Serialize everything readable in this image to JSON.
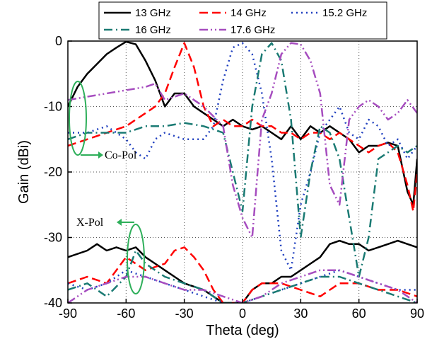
{
  "chart_data": {
    "type": "line",
    "title": "",
    "xlabel": "Theta (deg)",
    "ylabel": "Gain (dBi)",
    "xlim": [
      -90,
      90
    ],
    "ylim": [
      -40,
      0
    ],
    "xticks": [
      -90,
      -60,
      -30,
      0,
      30,
      60,
      90
    ],
    "yticks": [
      0,
      -10,
      -20,
      -30,
      -40
    ],
    "grid": true,
    "legend_position": "top",
    "annotations": [
      {
        "text": "Co-Pol"
      },
      {
        "text": "X-Pol"
      }
    ],
    "series": [
      {
        "name": "13 GHz",
        "color": "#000000",
        "style": "solid",
        "co_pol": {
          "x": [
            -90,
            -85,
            -80,
            -75,
            -70,
            -65,
            -60,
            -55,
            -50,
            -45,
            -40,
            -35,
            -30,
            -25,
            -20,
            -15,
            -10,
            -5,
            0,
            5,
            10,
            15,
            20,
            25,
            30,
            35,
            40,
            45,
            50,
            55,
            60,
            65,
            70,
            75,
            80,
            85,
            88,
            90
          ],
          "y": [
            -10,
            -7,
            -5,
            -3.5,
            -2,
            -1,
            -0.1,
            -0.5,
            -3,
            -6,
            -10,
            -8,
            -8,
            -10,
            -11,
            -12,
            -13,
            -12,
            -13,
            -13.5,
            -13,
            -14,
            -15,
            -13,
            -15,
            -13,
            -14,
            -13,
            -14,
            -15,
            -17,
            -16,
            -16,
            -15.5,
            -16,
            -23,
            -25,
            -18
          ]
        },
        "x_pol": {
          "x": [
            -90,
            -80,
            -75,
            -70,
            -65,
            -60,
            -55,
            -50,
            -45,
            -40,
            -35,
            -30,
            -25,
            -20,
            -15,
            -10,
            -5,
            0,
            5,
            10,
            15,
            20,
            25,
            30,
            35,
            40,
            45,
            50,
            55,
            60,
            65,
            70,
            75,
            80,
            85,
            90
          ],
          "y": [
            -33,
            -32,
            -31,
            -32,
            -31.5,
            -32,
            -31.5,
            -33,
            -34,
            -35,
            -36,
            -37,
            -37.5,
            -38,
            -39,
            -40,
            -40,
            -40,
            -38,
            -37,
            -37,
            -36,
            -36,
            -35,
            -34,
            -33,
            -31,
            -30.5,
            -31,
            -31,
            -32,
            -31.5,
            -31,
            -30.5,
            -31,
            -31.5
          ]
        }
      },
      {
        "name": "14 GHz",
        "color": "#ff0000",
        "style": "dash",
        "co_pol": {
          "x": [
            -90,
            -80,
            -70,
            -60,
            -50,
            -45,
            -40,
            -35,
            -30,
            -25,
            -20,
            -15,
            -10,
            -5,
            0,
            5,
            10,
            15,
            20,
            25,
            30,
            35,
            40,
            45,
            50,
            55,
            60,
            65,
            70,
            75,
            80,
            85,
            88,
            90
          ],
          "y": [
            -16,
            -15,
            -14,
            -13,
            -11,
            -10,
            -8,
            -4,
            -0.3,
            -4,
            -10,
            -13,
            -12,
            -13,
            -13,
            -12,
            -13,
            -13,
            -14,
            -14,
            -15,
            -14,
            -14,
            -15,
            -14,
            -15,
            -16,
            -17,
            -16,
            -15.5,
            -17,
            -22,
            -26,
            -20
          ]
        },
        "x_pol": {
          "x": [
            -90,
            -80,
            -70,
            -60,
            -50,
            -40,
            -35,
            -30,
            -25,
            -20,
            -15,
            -10,
            -5,
            0,
            5,
            10,
            20,
            30,
            40,
            50,
            60,
            70,
            80,
            90
          ],
          "y": [
            -37,
            -36,
            -37,
            -33,
            -35,
            -34,
            -32,
            -31.5,
            -33,
            -35,
            -38,
            -40,
            -40,
            -40,
            -38,
            -37,
            -37,
            -38,
            -39,
            -37,
            -37,
            -38,
            -38,
            -39
          ]
        }
      },
      {
        "name": "15.2 GHz",
        "color": "#1f3fbf",
        "style": "dot",
        "co_pol": {
          "x": [
            -90,
            -80,
            -70,
            -60,
            -55,
            -50,
            -45,
            -40,
            -30,
            -20,
            -15,
            -10,
            -5,
            0,
            5,
            10,
            15,
            20,
            25,
            30,
            35,
            40,
            45,
            50,
            55,
            60,
            65,
            70,
            75,
            80,
            85,
            90
          ],
          "y": [
            -14,
            -14,
            -13,
            -15,
            -17,
            -18,
            -15,
            -14,
            -15,
            -15,
            -13,
            -6,
            -1,
            -0.3,
            -2,
            -8,
            -18,
            -32,
            -35,
            -25,
            -20,
            -14,
            -12,
            -10,
            -14,
            -15,
            -12,
            -13,
            -16,
            -15,
            -18,
            -16
          ]
        },
        "x_pol": {
          "x": [
            -90,
            -80,
            -70,
            -60,
            -50,
            -40,
            -30,
            -20,
            -10,
            0,
            10,
            20,
            30,
            40,
            50,
            60,
            70,
            80,
            90
          ],
          "y": [
            -37,
            -38,
            -37,
            -35,
            -36,
            -37,
            -38,
            -39,
            -40,
            -40,
            -39,
            -38,
            -37,
            -36,
            -35,
            -36,
            -37,
            -38,
            -38
          ]
        }
      },
      {
        "name": "16 GHz",
        "color": "#1a7a73",
        "style": "dashdot",
        "co_pol": {
          "x": [
            -90,
            -80,
            -70,
            -60,
            -50,
            -40,
            -30,
            -20,
            -10,
            -5,
            0,
            5,
            10,
            15,
            20,
            25,
            30,
            35,
            40,
            45,
            50,
            55,
            60,
            65,
            70,
            75,
            80,
            85,
            90
          ],
          "y": [
            -15,
            -14,
            -14,
            -14,
            -13,
            -13,
            -12.5,
            -13,
            -14,
            -20,
            -26,
            -10,
            -2,
            -0.3,
            -3,
            -12,
            -30,
            -20,
            -13,
            -14,
            -18,
            -27,
            -36,
            -30,
            -18,
            -17,
            -16,
            -17,
            -16
          ]
        },
        "x_pol": {
          "x": [
            -90,
            -80,
            -70,
            -60,
            -55,
            -50,
            -40,
            -30,
            -20,
            -10,
            0,
            10,
            20,
            30,
            40,
            50,
            60,
            70,
            80,
            90
          ],
          "y": [
            -38,
            -37,
            -39,
            -36,
            -32,
            -34,
            -36,
            -37,
            -38,
            -40,
            -40,
            -39,
            -38,
            -37,
            -36,
            -36,
            -37,
            -38,
            -39,
            -40
          ]
        }
      },
      {
        "name": "17.6 GHz",
        "color": "#a64dbf",
        "style": "dashdotdot",
        "co_pol": {
          "x": [
            -90,
            -80,
            -70,
            -60,
            -50,
            -45,
            -40,
            -30,
            -20,
            -10,
            -5,
            0,
            5,
            10,
            15,
            20,
            25,
            30,
            35,
            40,
            45,
            50,
            55,
            60,
            65,
            70,
            75,
            80,
            85,
            90
          ],
          "y": [
            -9,
            -8.5,
            -8,
            -7.5,
            -7,
            -6.5,
            -9,
            -8,
            -10,
            -13,
            -22,
            -27,
            -30,
            -12,
            -8,
            -2,
            -0.3,
            -0.5,
            -3,
            -8,
            -22,
            -25,
            -12,
            -10,
            -9,
            -10,
            -12,
            -11,
            -9,
            -11
          ]
        },
        "x_pol": {
          "x": [
            -90,
            -80,
            -70,
            -60,
            -50,
            -40,
            -30,
            -20,
            -10,
            0,
            10,
            20,
            30,
            40,
            50,
            60,
            70,
            80,
            90
          ],
          "y": [
            -40,
            -38,
            -37,
            -36,
            -36,
            -37,
            -38,
            -38,
            -39,
            -40,
            -39,
            -37,
            -36,
            -35,
            -35,
            -36,
            -37,
            -38,
            -40
          ]
        }
      }
    ]
  }
}
